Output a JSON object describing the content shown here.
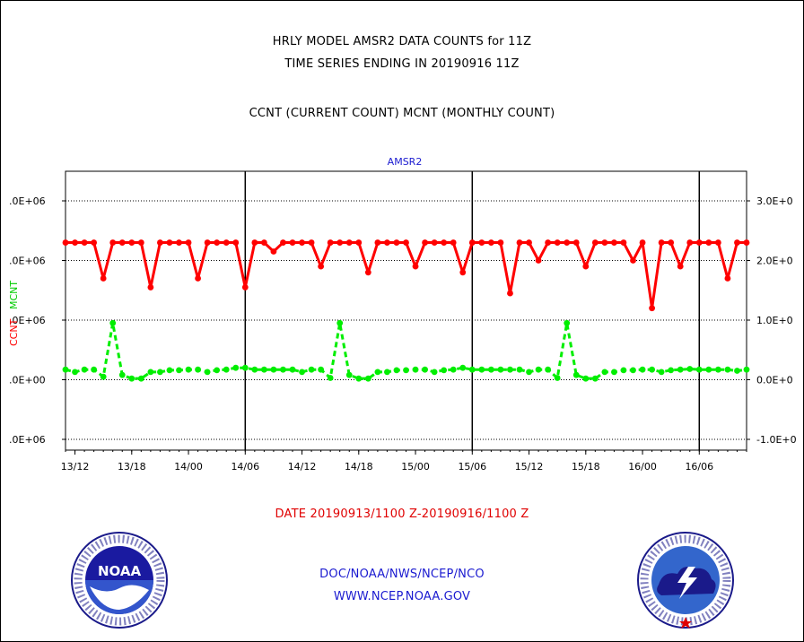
{
  "title_line1": "HRLY MODEL AMSR2 DATA COUNTS for 11Z",
  "title_line2": "TIME SERIES ENDING IN 20190916 11Z",
  "subtitle": "CCNT (CURRENT COUNT) MCNT (MONTHLY COUNT)",
  "date_range": "DATE 20190913/1100 Z-20190916/1100 Z",
  "footer_org": "DOC/NOAA/NWS/NCEP/NCO",
  "footer_url": "WWW.NCEP.NOAA.GOV",
  "noaa_logo_text": "NOAA",
  "colors": {
    "ccnt": "#ff0000",
    "mcnt": "#00ee00",
    "title_blue": "#1a1ad0",
    "grid": "#000000"
  },
  "chart_data": {
    "type": "line",
    "title": "AMSR2",
    "x_unit": "hours since 13/11Z",
    "x_range": [
      0,
      72
    ],
    "x_ticks": [
      {
        "x": 1,
        "label": "13/12"
      },
      {
        "x": 7,
        "label": "13/18"
      },
      {
        "x": 13,
        "label": "14/00"
      },
      {
        "x": 19,
        "label": "14/06"
      },
      {
        "x": 25,
        "label": "14/12"
      },
      {
        "x": 31,
        "label": "14/18"
      },
      {
        "x": 37,
        "label": "15/00"
      },
      {
        "x": 43,
        "label": "15/06"
      },
      {
        "x": 49,
        "label": "15/12"
      },
      {
        "x": 55,
        "label": "15/18"
      },
      {
        "x": 61,
        "label": "16/00"
      },
      {
        "x": 67,
        "label": "16/06"
      }
    ],
    "vertical_lines_x": [
      19,
      43,
      67
    ],
    "y_left": {
      "label_ccnt": "CCNT",
      "label_mcnt": "MCNT",
      "range": [
        -1000000.0,
        3000000.0
      ],
      "ticks": [
        -1000000.0,
        0,
        1000000.0,
        2000000.0,
        3000000.0
      ],
      "tick_labels": [
        ".0E+06",
        ".0E+00",
        ".0E+06",
        ".0E+06",
        ".0E+06"
      ]
    },
    "y_right": {
      "range": [
        -1000000.0,
        3000000.0
      ],
      "ticks": [
        -1000000.0,
        0,
        1000000.0,
        2000000.0,
        3000000.0
      ],
      "tick_labels": [
        "-1.0E+0",
        "0.0E+0",
        "1.0E+0",
        "2.0E+0",
        "3.0E+0"
      ]
    },
    "grid_y": [
      -1000000.0,
      0,
      1000000.0,
      2000000.0,
      3000000.0
    ],
    "series": [
      {
        "name": "CCNT",
        "style": "solid",
        "values": [
          2300000,
          2300000,
          2300000,
          2300000,
          1700000,
          2300000,
          2300000,
          2300000,
          2300000,
          1550000,
          2300000,
          2300000,
          2300000,
          2300000,
          1700000,
          2300000,
          2300000,
          2300000,
          2300000,
          1550000,
          2300000,
          2300000,
          2150000,
          2300000,
          2300000,
          2300000,
          2300000,
          1900000,
          2300000,
          2300000,
          2300000,
          2300000,
          1800000,
          2300000,
          2300000,
          2300000,
          2300000,
          1900000,
          2300000,
          2300000,
          2300000,
          2300000,
          1800000,
          2300000,
          2300000,
          2300000,
          2300000,
          1450000,
          2300000,
          2300000,
          2000000,
          2300000,
          2300000,
          2300000,
          2300000,
          1900000,
          2300000,
          2300000,
          2300000,
          2300000,
          2000000,
          2300000,
          1200000,
          2300000,
          2300000,
          1900000,
          2300000,
          2300000,
          2300000,
          2300000,
          1700000,
          2300000,
          2300000
        ]
      },
      {
        "name": "MCNT",
        "style": "dashed",
        "values": [
          170000,
          130000,
          170000,
          170000,
          50000,
          950000,
          80000,
          20000,
          20000,
          130000,
          130000,
          160000,
          160000,
          170000,
          170000,
          130000,
          160000,
          170000,
          200000,
          200000,
          170000,
          170000,
          170000,
          170000,
          170000,
          130000,
          170000,
          170000,
          30000,
          950000,
          80000,
          20000,
          20000,
          130000,
          130000,
          160000,
          160000,
          170000,
          170000,
          130000,
          160000,
          170000,
          200000,
          170000,
          170000,
          170000,
          170000,
          170000,
          170000,
          130000,
          170000,
          170000,
          30000,
          950000,
          80000,
          20000,
          20000,
          130000,
          130000,
          160000,
          160000,
          170000,
          170000,
          130000,
          160000,
          170000,
          180000,
          170000,
          170000,
          170000,
          170000,
          150000,
          170000
        ]
      }
    ]
  }
}
